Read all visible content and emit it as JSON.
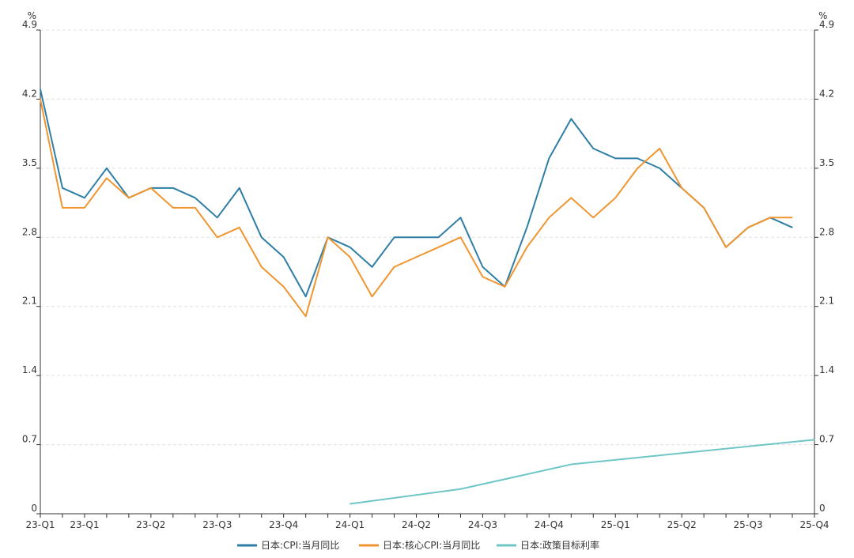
{
  "chart_data": {
    "type": "line",
    "title": "",
    "left_unit": "%",
    "right_unit": "%",
    "ylim": [
      0,
      4.9
    ],
    "y_ticks": [
      "0",
      "0.7",
      "1.4",
      "2.1",
      "2.8",
      "3.5",
      "4.2",
      "4.9"
    ],
    "x_tick_labels": [
      "23-Q1",
      "23-Q1",
      "23-Q2",
      "23-Q3",
      "23-Q4",
      "24-Q1",
      "24-Q2",
      "24-Q3",
      "24-Q4",
      "25-Q1",
      "25-Q2",
      "25-Q3",
      "25-Q4"
    ],
    "grid": "horizontal-dashed",
    "legend_position": "bottom-center",
    "colors": {
      "cpi": "#2e7ea6",
      "core_cpi": "#f0952f",
      "policy_rate": "#6fc6c6",
      "axis": "#333333",
      "grid": "#e0e0e0"
    },
    "series": [
      {
        "name": "日本:CPI:当月同比",
        "color": "#2e7ea6",
        "start_index": 0,
        "values": [
          4.3,
          3.3,
          3.2,
          3.5,
          3.2,
          3.3,
          3.3,
          3.2,
          3.0,
          3.3,
          2.8,
          2.6,
          2.2,
          2.8,
          2.7,
          2.5,
          2.8,
          2.8,
          2.8,
          3.0,
          2.5,
          2.3,
          2.9,
          3.6,
          4.0,
          3.7,
          3.6,
          3.6,
          3.5,
          3.3,
          3.1,
          2.7,
          2.9,
          3.0,
          2.9
        ]
      },
      {
        "name": "日本:核心CPI:当月同比",
        "color": "#f0952f",
        "start_index": 0,
        "values": [
          4.2,
          3.1,
          3.1,
          3.4,
          3.2,
          3.3,
          3.1,
          3.1,
          2.8,
          2.9,
          2.5,
          2.3,
          2.0,
          2.8,
          2.6,
          2.2,
          2.5,
          2.6,
          2.7,
          2.8,
          2.4,
          2.3,
          2.7,
          3.0,
          3.2,
          3.0,
          3.2,
          3.5,
          3.7,
          3.3,
          3.1,
          2.7,
          2.9,
          3.0,
          3.0
        ]
      },
      {
        "name": "日本:政策目标利率",
        "color": "#6fc6c6",
        "start_index": 14,
        "values": [
          0.1,
          0.25,
          0.5,
          0.75
        ],
        "x_positions": [
          14,
          19,
          24,
          35
        ]
      }
    ]
  }
}
